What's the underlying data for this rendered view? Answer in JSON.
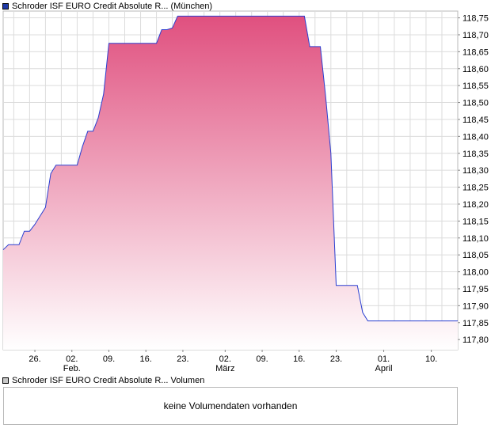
{
  "legend": {
    "main_label": "Schroder ISF EURO Credit Absolute R... (München)",
    "main_color": "#1f3aa8",
    "volume_label": "Schroder ISF EURO Credit Absolute R... Volumen",
    "volume_color": "#c8c8c8"
  },
  "volume": {
    "empty_text": "keine Volumendaten vorhanden"
  },
  "chart_data": {
    "type": "area",
    "line_color": "#2a3fd1",
    "fill_top_color": "#e0507f",
    "fill_bottom_color": "#ffffff",
    "grid": true,
    "ylim": [
      117.77,
      118.77
    ],
    "yticks": [
      {
        "v": 117.8,
        "label": "117,80"
      },
      {
        "v": 117.85,
        "label": "117,85"
      },
      {
        "v": 117.9,
        "label": "117,90"
      },
      {
        "v": 117.95,
        "label": "117,95"
      },
      {
        "v": 118.0,
        "label": "118,00"
      },
      {
        "v": 118.05,
        "label": "118,05"
      },
      {
        "v": 118.1,
        "label": "118,10"
      },
      {
        "v": 118.15,
        "label": "118,15"
      },
      {
        "v": 118.2,
        "label": "118,20"
      },
      {
        "v": 118.25,
        "label": "118,25"
      },
      {
        "v": 118.3,
        "label": "118,30"
      },
      {
        "v": 118.35,
        "label": "118,35"
      },
      {
        "v": 118.4,
        "label": "118,40"
      },
      {
        "v": 118.45,
        "label": "118,45"
      },
      {
        "v": 118.5,
        "label": "118,50"
      },
      {
        "v": 118.55,
        "label": "118,55"
      },
      {
        "v": 118.6,
        "label": "118,60"
      },
      {
        "v": 118.65,
        "label": "118,65"
      },
      {
        "v": 118.7,
        "label": "118,70"
      },
      {
        "v": 118.75,
        "label": "118,75"
      }
    ],
    "xlim": [
      "2024-01-20",
      "2024-04-15"
    ],
    "xticks": [
      {
        "date": "2024-01-26",
        "label": "26.",
        "sub": ""
      },
      {
        "date": "2024-02-02",
        "label": "02.",
        "sub": "Feb."
      },
      {
        "date": "2024-02-09",
        "label": "09.",
        "sub": ""
      },
      {
        "date": "2024-02-16",
        "label": "16.",
        "sub": ""
      },
      {
        "date": "2024-02-23",
        "label": "23.",
        "sub": ""
      },
      {
        "date": "2024-03-02",
        "label": "02.",
        "sub": "März"
      },
      {
        "date": "2024-03-09",
        "label": "09.",
        "sub": ""
      },
      {
        "date": "2024-03-16",
        "label": "16.",
        "sub": ""
      },
      {
        "date": "2024-03-23",
        "label": "23.",
        "sub": ""
      },
      {
        "date": "2024-04-01",
        "label": "01.",
        "sub": "April"
      },
      {
        "date": "2024-04-10",
        "label": "10.",
        "sub": ""
      }
    ],
    "series": [
      {
        "points": [
          [
            "2024-01-20",
            118.065
          ],
          [
            "2024-01-21",
            118.08
          ],
          [
            "2024-01-22",
            118.08
          ],
          [
            "2024-01-23",
            118.08
          ],
          [
            "2024-01-24",
            118.12
          ],
          [
            "2024-01-25",
            118.12
          ],
          [
            "2024-01-26",
            118.14
          ],
          [
            "2024-01-27",
            118.165
          ],
          [
            "2024-01-28",
            118.19
          ],
          [
            "2024-01-29",
            118.29
          ],
          [
            "2024-01-30",
            118.315
          ],
          [
            "2024-01-31",
            118.315
          ],
          [
            "2024-02-01",
            118.315
          ],
          [
            "2024-02-02",
            118.315
          ],
          [
            "2024-02-03",
            118.315
          ],
          [
            "2024-02-04",
            118.37
          ],
          [
            "2024-02-05",
            118.415
          ],
          [
            "2024-02-06",
            118.415
          ],
          [
            "2024-02-07",
            118.455
          ],
          [
            "2024-02-08",
            118.525
          ],
          [
            "2024-02-09",
            118.675
          ],
          [
            "2024-02-10",
            118.675
          ],
          [
            "2024-02-11",
            118.675
          ],
          [
            "2024-02-12",
            118.675
          ],
          [
            "2024-02-13",
            118.675
          ],
          [
            "2024-02-14",
            118.675
          ],
          [
            "2024-02-15",
            118.675
          ],
          [
            "2024-02-16",
            118.675
          ],
          [
            "2024-02-17",
            118.675
          ],
          [
            "2024-02-18",
            118.675
          ],
          [
            "2024-02-19",
            118.715
          ],
          [
            "2024-02-20",
            118.715
          ],
          [
            "2024-02-21",
            118.72
          ],
          [
            "2024-02-22",
            118.755
          ],
          [
            "2024-02-23",
            118.755
          ],
          [
            "2024-02-24",
            118.755
          ],
          [
            "2024-02-25",
            118.755
          ],
          [
            "2024-02-26",
            118.755
          ],
          [
            "2024-02-27",
            118.755
          ],
          [
            "2024-02-28",
            118.755
          ],
          [
            "2024-02-29",
            118.755
          ],
          [
            "2024-03-01",
            118.755
          ],
          [
            "2024-03-02",
            118.755
          ],
          [
            "2024-03-03",
            118.755
          ],
          [
            "2024-03-04",
            118.755
          ],
          [
            "2024-03-05",
            118.755
          ],
          [
            "2024-03-06",
            118.755
          ],
          [
            "2024-03-07",
            118.755
          ],
          [
            "2024-03-08",
            118.755
          ],
          [
            "2024-03-09",
            118.755
          ],
          [
            "2024-03-10",
            118.755
          ],
          [
            "2024-03-11",
            118.755
          ],
          [
            "2024-03-12",
            118.755
          ],
          [
            "2024-03-13",
            118.755
          ],
          [
            "2024-03-14",
            118.755
          ],
          [
            "2024-03-15",
            118.755
          ],
          [
            "2024-03-16",
            118.755
          ],
          [
            "2024-03-17",
            118.755
          ],
          [
            "2024-03-18",
            118.665
          ],
          [
            "2024-03-19",
            118.665
          ],
          [
            "2024-03-20",
            118.665
          ],
          [
            "2024-03-21",
            118.52
          ],
          [
            "2024-03-22",
            118.35
          ],
          [
            "2024-03-23",
            117.96
          ],
          [
            "2024-03-24",
            117.96
          ],
          [
            "2024-03-25",
            117.96
          ],
          [
            "2024-03-26",
            117.96
          ],
          [
            "2024-03-27",
            117.96
          ],
          [
            "2024-03-28",
            117.88
          ],
          [
            "2024-03-29",
            117.855
          ],
          [
            "2024-03-30",
            117.855
          ],
          [
            "2024-03-31",
            117.855
          ],
          [
            "2024-04-01",
            117.855
          ],
          [
            "2024-04-02",
            117.855
          ],
          [
            "2024-04-03",
            117.855
          ],
          [
            "2024-04-04",
            117.855
          ],
          [
            "2024-04-05",
            117.855
          ],
          [
            "2024-04-06",
            117.855
          ],
          [
            "2024-04-07",
            117.855
          ],
          [
            "2024-04-08",
            117.855
          ],
          [
            "2024-04-09",
            117.855
          ],
          [
            "2024-04-10",
            117.855
          ],
          [
            "2024-04-11",
            117.855
          ],
          [
            "2024-04-12",
            117.855
          ],
          [
            "2024-04-13",
            117.855
          ],
          [
            "2024-04-14",
            117.855
          ],
          [
            "2024-04-15",
            117.855
          ]
        ]
      }
    ]
  }
}
